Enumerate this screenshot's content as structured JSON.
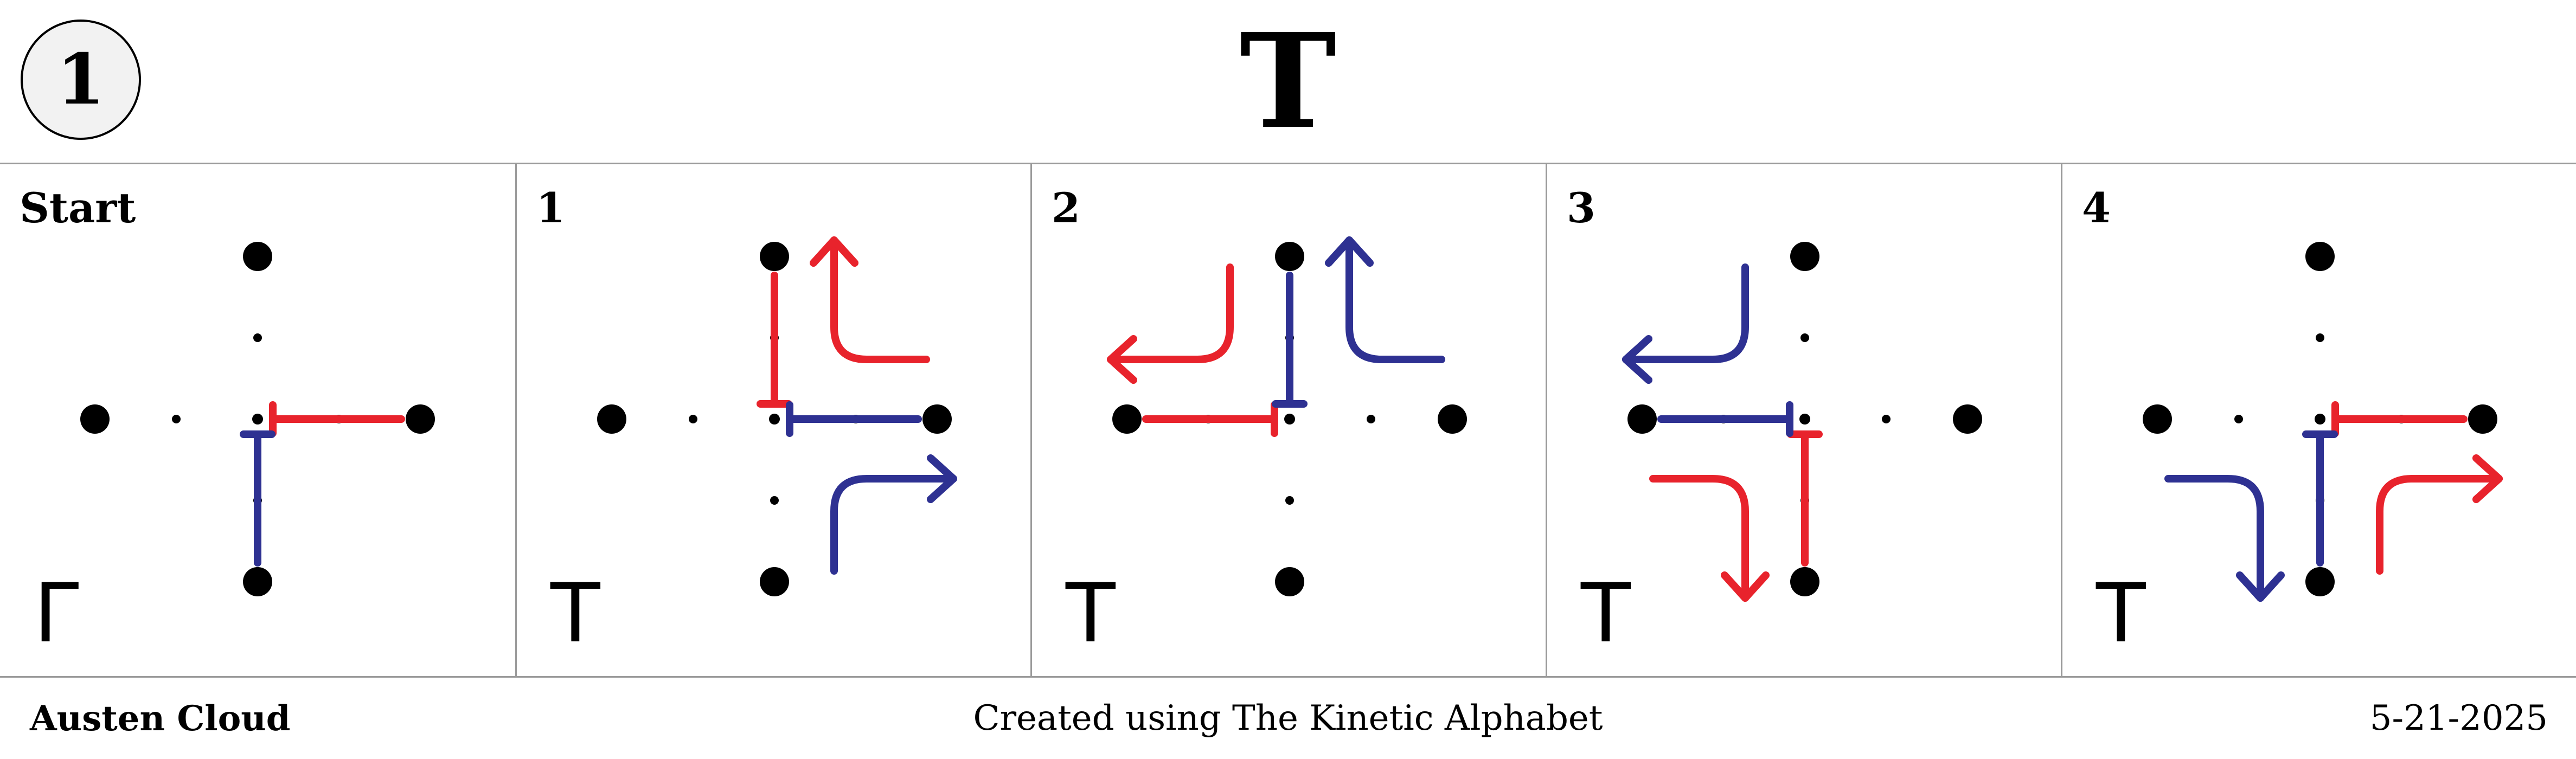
{
  "header": {
    "number": "1",
    "title": "T"
  },
  "panels": [
    {
      "label": "Start",
      "glyph": "Γ",
      "dominant": "right",
      "red_mark": "bar-right",
      "blue_mark": "bar-down"
    },
    {
      "label": "1",
      "glyph": "T",
      "dominant": "right",
      "red_mark": "bar-up",
      "blue_mark": "bar-right",
      "red_arrow": "curve-up",
      "blue_arrow": "curve-right"
    },
    {
      "label": "2",
      "glyph": "T",
      "dominant": "up",
      "red_mark": "bar-left",
      "blue_mark": "bar-up",
      "red_arrow": "curve-left",
      "blue_arrow": "curve-up"
    },
    {
      "label": "3",
      "glyph": "T",
      "dominant": "left",
      "red_mark": "bar-down",
      "blue_mark": "bar-left",
      "red_arrow": "curve-down",
      "blue_arrow": "curve-left"
    },
    {
      "label": "4",
      "glyph": "T",
      "dominant": "down",
      "red_mark": "bar-right",
      "blue_mark": "bar-down",
      "red_arrow": "curve-right",
      "blue_arrow": "curve-down"
    }
  ],
  "footer": {
    "author": "Austen Cloud",
    "credit": "Created using The Kinetic Alphabet",
    "date": "5-21-2025"
  },
  "colors": {
    "red": "#e8232c",
    "blue": "#2e3192",
    "grid": "#9a9a9a",
    "ink": "#000000"
  }
}
